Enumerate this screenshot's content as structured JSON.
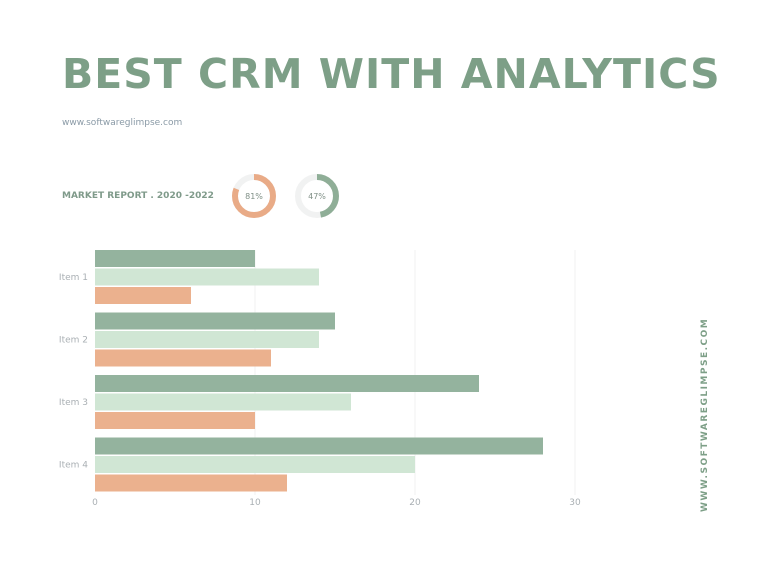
{
  "title": "BEST CRM WITH ANALYTICS",
  "url": "www.softwareglimpse.com",
  "report_label": "MARKET REPORT . 2020 -2022",
  "donuts": [
    {
      "label": "81%",
      "value": 81,
      "color": "#e9ab87"
    },
    {
      "label": "47%",
      "value": 47,
      "color": "#8fae97"
    }
  ],
  "vertical_url": "WWW.SOFTWAREGLIMPSE.COM",
  "colors": {
    "accent": "#7d9f87",
    "track": "#f1f2f2"
  },
  "chart_data": {
    "type": "bar",
    "orientation": "horizontal",
    "categories": [
      "Item 1",
      "Item 2",
      "Item 3",
      "Item 4"
    ],
    "series": [
      {
        "values": [
          10,
          15,
          24,
          28
        ],
        "color": "#94b39e"
      },
      {
        "values": [
          14,
          14,
          16,
          20
        ],
        "color": "#d0e6d4"
      },
      {
        "values": [
          6,
          11,
          10,
          12
        ],
        "color": "#ebb18e"
      }
    ],
    "xlim": [
      0,
      30
    ],
    "xticks": [
      "0",
      "10",
      "20",
      "30"
    ],
    "grid": true,
    "legend": "none"
  }
}
